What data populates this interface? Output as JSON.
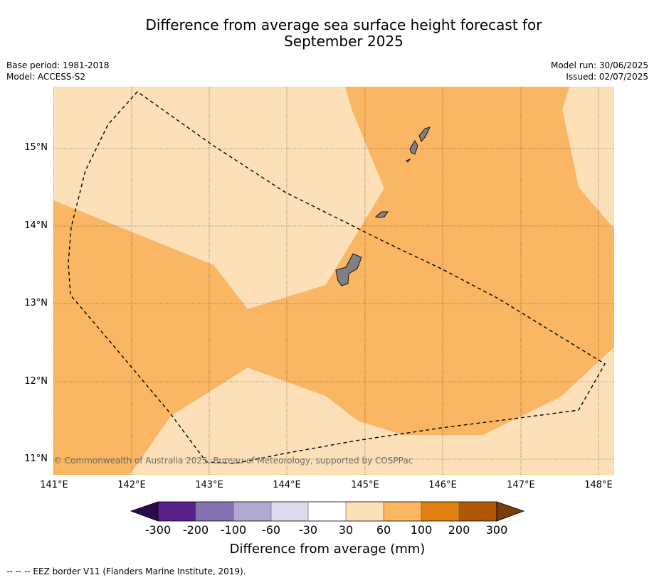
{
  "title_line1": "Difference from average sea surface height forecast for",
  "title_line2": "September 2025",
  "base_period": "Base period: 1981-2018",
  "model": "Model: ACCESS-S2",
  "model_run": "Model run: 30/06/2025",
  "issued": "Issued: 02/07/2025",
  "copyright": "© Commonwealth of Australia 2025, Bureau of Meteorology, supported by COSPPac",
  "lat_labels": [
    "15°N",
    "14°N",
    "13°N",
    "12°N",
    "11°N"
  ],
  "lon_labels": [
    "141°E",
    "142°E",
    "143°E",
    "144°E",
    "145°E",
    "146°E",
    "147°E",
    "148°E"
  ],
  "colorbar": {
    "ticks": [
      "-300",
      "-200",
      "-100",
      "-60",
      "-30",
      "30",
      "60",
      "100",
      "200",
      "300"
    ],
    "colors": [
      "#2d0b46",
      "#58208a",
      "#8472b0",
      "#b0a8d1",
      "#dcdbec",
      "#ffffff",
      "#fde0b7",
      "#fab662",
      "#e08010",
      "#b05806",
      "#7a3c08"
    ],
    "label": "Difference from average (mm)"
  },
  "legend_note": "--  --  -- EEZ border V11 (Flanders Marine Institute, 2019).",
  "colors": {
    "band_30_60": "#fde0b7",
    "band_60_100": "#fab662",
    "land": "#808080"
  }
}
